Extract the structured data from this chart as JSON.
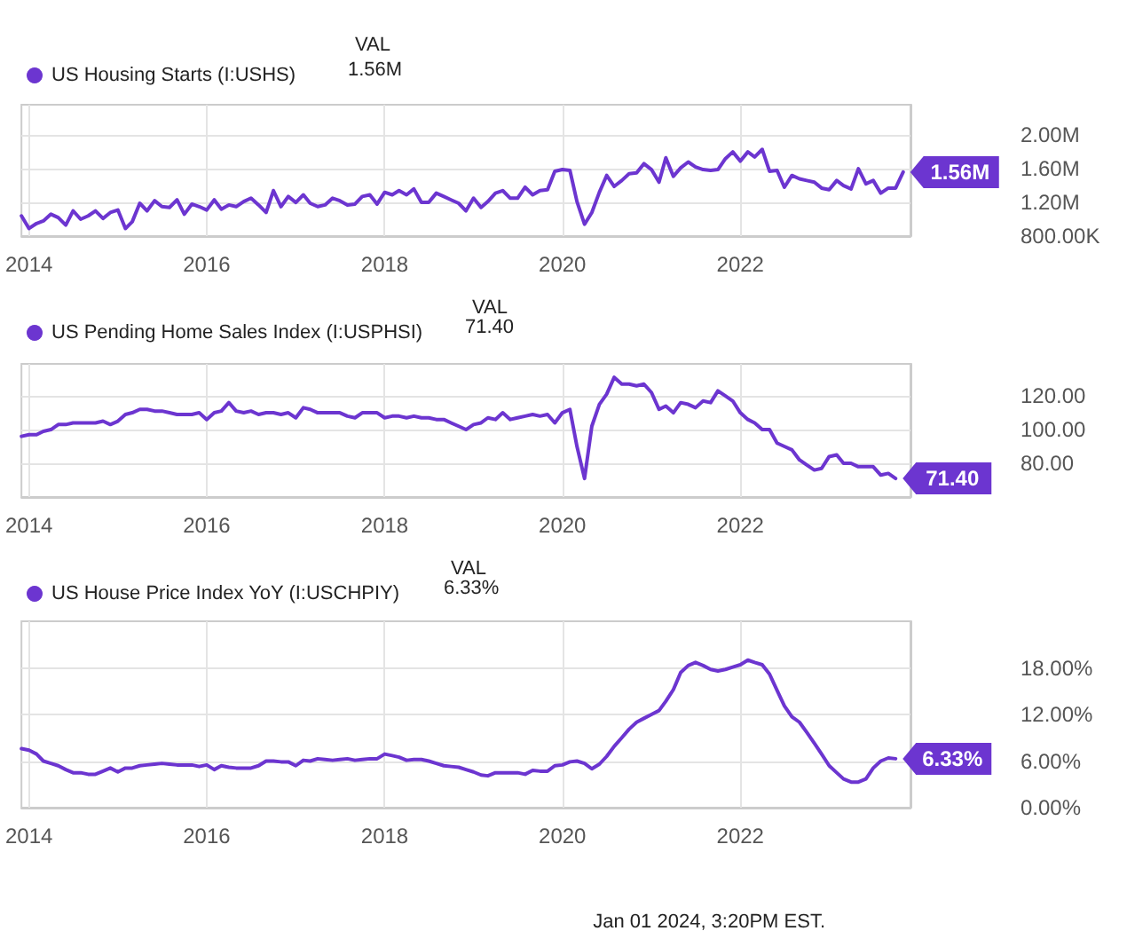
{
  "chart_data": [
    {
      "type": "line",
      "legend": "top left",
      "grid": true,
      "marker": "none",
      "line_style": "solid",
      "annotations": [
        "VAL",
        "1.56M",
        {
          "text": "1.56M",
          "x": "2023-11",
          "y": 1560000
        }
      ],
      "xlim": [
        "2013-12",
        "2023-12"
      ],
      "xticks": [
        {
          "value": "2014-01",
          "label": "2014"
        },
        {
          "value": "2016-01",
          "label": "2016"
        },
        {
          "value": "2018-01",
          "label": "2018"
        },
        {
          "value": "2020-01",
          "label": "2020"
        },
        {
          "value": "2022-01",
          "label": "2022"
        }
      ],
      "ylim": [
        800000,
        2360000
      ],
      "yticks": [
        {
          "value": 800000,
          "label": "800.00K"
        },
        {
          "value": 1200000,
          "label": "1.20M"
        },
        {
          "value": 1600000,
          "label": "1.60M"
        },
        {
          "value": 2000000,
          "label": "2.00M"
        }
      ],
      "x": [
        "2013-12",
        "2014-01",
        "2014-02",
        "2014-03",
        "2014-04",
        "2014-05",
        "2014-06",
        "2014-07",
        "2014-08",
        "2014-09",
        "2014-10",
        "2014-11",
        "2014-12",
        "2015-01",
        "2015-02",
        "2015-03",
        "2015-04",
        "2015-05",
        "2015-06",
        "2015-07",
        "2015-08",
        "2015-09",
        "2015-10",
        "2015-11",
        "2015-12",
        "2016-01",
        "2016-02",
        "2016-03",
        "2016-04",
        "2016-05",
        "2016-06",
        "2016-07",
        "2016-08",
        "2016-09",
        "2016-10",
        "2016-11",
        "2016-12",
        "2017-01",
        "2017-02",
        "2017-03",
        "2017-04",
        "2017-05",
        "2017-06",
        "2017-07",
        "2017-08",
        "2017-09",
        "2017-10",
        "2017-11",
        "2017-12",
        "2018-01",
        "2018-02",
        "2018-03",
        "2018-04",
        "2018-05",
        "2018-06",
        "2018-07",
        "2018-08",
        "2018-09",
        "2018-10",
        "2018-11",
        "2018-12",
        "2019-01",
        "2019-02",
        "2019-03",
        "2019-04",
        "2019-05",
        "2019-06",
        "2019-07",
        "2019-08",
        "2019-09",
        "2019-10",
        "2019-11",
        "2019-12",
        "2020-01",
        "2020-02",
        "2020-03",
        "2020-04",
        "2020-05",
        "2020-06",
        "2020-07",
        "2020-08",
        "2020-09",
        "2020-10",
        "2020-11",
        "2020-12",
        "2021-01",
        "2021-02",
        "2021-03",
        "2021-04",
        "2021-05",
        "2021-06",
        "2021-07",
        "2021-08",
        "2021-09",
        "2021-10",
        "2021-11",
        "2021-12",
        "2022-01",
        "2022-02",
        "2022-03",
        "2022-04",
        "2022-05",
        "2022-06",
        "2022-07",
        "2022-08",
        "2022-09",
        "2022-10",
        "2022-11",
        "2022-12",
        "2023-01",
        "2023-02",
        "2023-03",
        "2023-04",
        "2023-05",
        "2023-06",
        "2023-07",
        "2023-08",
        "2023-09",
        "2023-10",
        "2023-11"
      ],
      "series": [
        {
          "name": "US Housing Starts (I:USHS)",
          "color": "#6c35d0",
          "values": [
            1040000,
            890000,
            950000,
            980000,
            1060000,
            1020000,
            930000,
            1100000,
            1000000,
            1040000,
            1100000,
            1010000,
            1080000,
            1110000,
            890000,
            970000,
            1190000,
            1100000,
            1220000,
            1150000,
            1140000,
            1230000,
            1060000,
            1180000,
            1150000,
            1110000,
            1230000,
            1120000,
            1170000,
            1150000,
            1210000,
            1250000,
            1170000,
            1080000,
            1340000,
            1150000,
            1270000,
            1200000,
            1290000,
            1190000,
            1150000,
            1170000,
            1250000,
            1220000,
            1170000,
            1180000,
            1270000,
            1290000,
            1180000,
            1320000,
            1290000,
            1340000,
            1290000,
            1360000,
            1200000,
            1200000,
            1310000,
            1270000,
            1230000,
            1190000,
            1100000,
            1250000,
            1140000,
            1210000,
            1310000,
            1340000,
            1250000,
            1250000,
            1380000,
            1290000,
            1340000,
            1350000,
            1570000,
            1590000,
            1580000,
            1210000,
            940000,
            1080000,
            1320000,
            1520000,
            1390000,
            1460000,
            1540000,
            1550000,
            1660000,
            1590000,
            1440000,
            1730000,
            1510000,
            1610000,
            1680000,
            1620000,
            1590000,
            1580000,
            1590000,
            1720000,
            1800000,
            1690000,
            1800000,
            1740000,
            1830000,
            1570000,
            1580000,
            1380000,
            1520000,
            1480000,
            1460000,
            1440000,
            1370000,
            1350000,
            1460000,
            1400000,
            1360000,
            1600000,
            1420000,
            1460000,
            1310000,
            1370000,
            1370000,
            1560000
          ]
        }
      ]
    },
    {
      "type": "line",
      "legend": "top left",
      "grid": true,
      "marker": "none",
      "line_style": "solid",
      "annotations": [
        "VAL",
        "71.40",
        {
          "text": "71.40",
          "x": "2023-10",
          "y": 71
        }
      ],
      "xlim": [
        "2013-12",
        "2023-12"
      ],
      "xticks": [
        {
          "value": "2014-01",
          "label": "2014"
        },
        {
          "value": "2016-01",
          "label": "2016"
        },
        {
          "value": "2018-01",
          "label": "2018"
        },
        {
          "value": "2020-01",
          "label": "2020"
        },
        {
          "value": "2022-01",
          "label": "2022"
        }
      ],
      "ylim": [
        60,
        139
      ],
      "yticks": [
        {
          "value": 80,
          "label": "80.00"
        },
        {
          "value": 100,
          "label": "100.00"
        },
        {
          "value": 120,
          "label": "120.00"
        }
      ],
      "x": [
        "2013-12",
        "2014-01",
        "2014-02",
        "2014-03",
        "2014-04",
        "2014-05",
        "2014-06",
        "2014-07",
        "2014-08",
        "2014-09",
        "2014-10",
        "2014-11",
        "2014-12",
        "2015-01",
        "2015-02",
        "2015-03",
        "2015-04",
        "2015-05",
        "2015-06",
        "2015-07",
        "2015-08",
        "2015-09",
        "2015-10",
        "2015-11",
        "2015-12",
        "2016-01",
        "2016-02",
        "2016-03",
        "2016-04",
        "2016-05",
        "2016-06",
        "2016-07",
        "2016-08",
        "2016-09",
        "2016-10",
        "2016-11",
        "2016-12",
        "2017-01",
        "2017-02",
        "2017-03",
        "2017-04",
        "2017-05",
        "2017-06",
        "2017-07",
        "2017-08",
        "2017-09",
        "2017-10",
        "2017-11",
        "2017-12",
        "2018-01",
        "2018-02",
        "2018-03",
        "2018-04",
        "2018-05",
        "2018-06",
        "2018-07",
        "2018-08",
        "2018-09",
        "2018-10",
        "2018-11",
        "2018-12",
        "2019-01",
        "2019-02",
        "2019-03",
        "2019-04",
        "2019-05",
        "2019-06",
        "2019-07",
        "2019-08",
        "2019-09",
        "2019-10",
        "2019-11",
        "2019-12",
        "2020-01",
        "2020-02",
        "2020-03",
        "2020-04",
        "2020-05",
        "2020-06",
        "2020-07",
        "2020-08",
        "2020-09",
        "2020-10",
        "2020-11",
        "2020-12",
        "2021-01",
        "2021-02",
        "2021-03",
        "2021-04",
        "2021-05",
        "2021-06",
        "2021-07",
        "2021-08",
        "2021-09",
        "2021-10",
        "2021-11",
        "2021-12",
        "2022-01",
        "2022-02",
        "2022-03",
        "2022-04",
        "2022-05",
        "2022-06",
        "2022-07",
        "2022-08",
        "2022-09",
        "2022-10",
        "2022-11",
        "2022-12",
        "2023-01",
        "2023-02",
        "2023-03",
        "2023-04",
        "2023-05",
        "2023-06",
        "2023-07",
        "2023-08",
        "2023-09",
        "2023-10"
      ],
      "series": [
        {
          "name": "US Pending Home Sales Index (I:USPHSI)",
          "color": "#6c35d0",
          "values": [
            96,
            97,
            97,
            99,
            100,
            103,
            103,
            104,
            104,
            104,
            104,
            105,
            103,
            105,
            109,
            110,
            112,
            112,
            111,
            111,
            110,
            109,
            109,
            109,
            110,
            106,
            110,
            111,
            116,
            111,
            110,
            111,
            109,
            110,
            110,
            109,
            110,
            107,
            113,
            112,
            110,
            110,
            110,
            110,
            108,
            107,
            110,
            110,
            110,
            107,
            108,
            108,
            107,
            108,
            107,
            107,
            106,
            106,
            104,
            102,
            100,
            103,
            104,
            107,
            106,
            110,
            106,
            107,
            108,
            109,
            108,
            109,
            104,
            110,
            112,
            90,
            71,
            102,
            115,
            121,
            131,
            127,
            127,
            126,
            127,
            122,
            112,
            114,
            110,
            116,
            115,
            113,
            117,
            116,
            123,
            120,
            117,
            110,
            106,
            104,
            100,
            100,
            92,
            90,
            88,
            82,
            79,
            76,
            77,
            84,
            85,
            80,
            80,
            78,
            78,
            78,
            73,
            74,
            71
          ]
        }
      ]
    },
    {
      "type": "line",
      "legend": "top left",
      "grid": true,
      "marker": "none",
      "line_style": "solid",
      "annotations": [
        "VAL",
        "6.33%",
        {
          "text": "6.33%",
          "x": "2023-10",
          "y": 6.3
        },
        "Jan 01 2024, 3:20PM EST."
      ],
      "xlim": [
        "2013-12",
        "2023-12"
      ],
      "xticks": [
        {
          "value": "2014-01",
          "label": "2014"
        },
        {
          "value": "2016-01",
          "label": "2016"
        },
        {
          "value": "2018-01",
          "label": "2018"
        },
        {
          "value": "2020-01",
          "label": "2020"
        },
        {
          "value": "2022-01",
          "label": "2022"
        }
      ],
      "ylim": [
        0,
        24
      ],
      "yticks": [
        {
          "value": 0,
          "label": "0.00%"
        },
        {
          "value": 6,
          "label": "6.00%"
        },
        {
          "value": 12,
          "label": "12.00%"
        },
        {
          "value": 18,
          "label": "18.00%"
        }
      ],
      "x": [
        "2013-12",
        "2014-01",
        "2014-02",
        "2014-03",
        "2014-04",
        "2014-05",
        "2014-06",
        "2014-07",
        "2014-08",
        "2014-09",
        "2014-10",
        "2014-11",
        "2014-12",
        "2015-01",
        "2015-02",
        "2015-03",
        "2015-04",
        "2015-05",
        "2015-06",
        "2015-07",
        "2015-08",
        "2015-09",
        "2015-10",
        "2015-11",
        "2015-12",
        "2016-01",
        "2016-02",
        "2016-03",
        "2016-04",
        "2016-05",
        "2016-06",
        "2016-07",
        "2016-08",
        "2016-09",
        "2016-10",
        "2016-11",
        "2016-12",
        "2017-01",
        "2017-02",
        "2017-03",
        "2017-04",
        "2017-05",
        "2017-06",
        "2017-07",
        "2017-08",
        "2017-09",
        "2017-10",
        "2017-11",
        "2017-12",
        "2018-01",
        "2018-02",
        "2018-03",
        "2018-04",
        "2018-05",
        "2018-06",
        "2018-07",
        "2018-08",
        "2018-09",
        "2018-10",
        "2018-11",
        "2018-12",
        "2019-01",
        "2019-02",
        "2019-03",
        "2019-04",
        "2019-05",
        "2019-06",
        "2019-07",
        "2019-08",
        "2019-09",
        "2019-10",
        "2019-11",
        "2019-12",
        "2020-01",
        "2020-02",
        "2020-03",
        "2020-04",
        "2020-05",
        "2020-06",
        "2020-07",
        "2020-08",
        "2020-09",
        "2020-10",
        "2020-11",
        "2020-12",
        "2021-01",
        "2021-02",
        "2021-03",
        "2021-04",
        "2021-05",
        "2021-06",
        "2021-07",
        "2021-08",
        "2021-09",
        "2021-10",
        "2021-11",
        "2021-12",
        "2022-01",
        "2022-02",
        "2022-03",
        "2022-04",
        "2022-05",
        "2022-06",
        "2022-07",
        "2022-08",
        "2022-09",
        "2022-10",
        "2022-11",
        "2022-12",
        "2023-01",
        "2023-02",
        "2023-03",
        "2023-04",
        "2023-05",
        "2023-06",
        "2023-07",
        "2023-08",
        "2023-09",
        "2023-10"
      ],
      "series": [
        {
          "name": "US House Price Index YoY (I:USCHPIY)",
          "color": "#6c35d0",
          "values": [
            7.6,
            7.4,
            6.9,
            6.0,
            5.7,
            5.4,
            4.9,
            4.5,
            4.5,
            4.3,
            4.3,
            4.7,
            5.1,
            4.6,
            5.1,
            5.1,
            5.4,
            5.5,
            5.6,
            5.7,
            5.6,
            5.5,
            5.5,
            5.5,
            5.3,
            5.5,
            4.9,
            5.4,
            5.2,
            5.1,
            5.1,
            5.1,
            5.4,
            6.0,
            6.0,
            5.9,
            5.9,
            5.4,
            6.1,
            6.0,
            6.3,
            6.2,
            6.1,
            6.2,
            6.3,
            6.1,
            6.2,
            6.3,
            6.3,
            6.9,
            6.7,
            6.5,
            6.1,
            6.2,
            6.2,
            6.0,
            5.7,
            5.4,
            5.3,
            5.2,
            4.9,
            4.6,
            4.2,
            4.1,
            4.5,
            4.5,
            4.5,
            4.5,
            4.3,
            4.8,
            4.7,
            4.7,
            5.4,
            5.5,
            5.9,
            6.0,
            5.7,
            5.0,
            5.6,
            6.6,
            7.9,
            9.0,
            10.1,
            11.0,
            11.5,
            12.0,
            12.5,
            13.7,
            15.2,
            17.4,
            18.3,
            18.7,
            18.3,
            17.8,
            17.6,
            17.8,
            18.1,
            18.4,
            19.0,
            18.7,
            18.4,
            17.2,
            15.1,
            13.1,
            11.7,
            11.0,
            9.7,
            8.3,
            6.9,
            5.4,
            4.5,
            3.7,
            3.3,
            3.3,
            3.7,
            5.1,
            6.0,
            6.4,
            6.3
          ]
        }
      ]
    }
  ]
}
